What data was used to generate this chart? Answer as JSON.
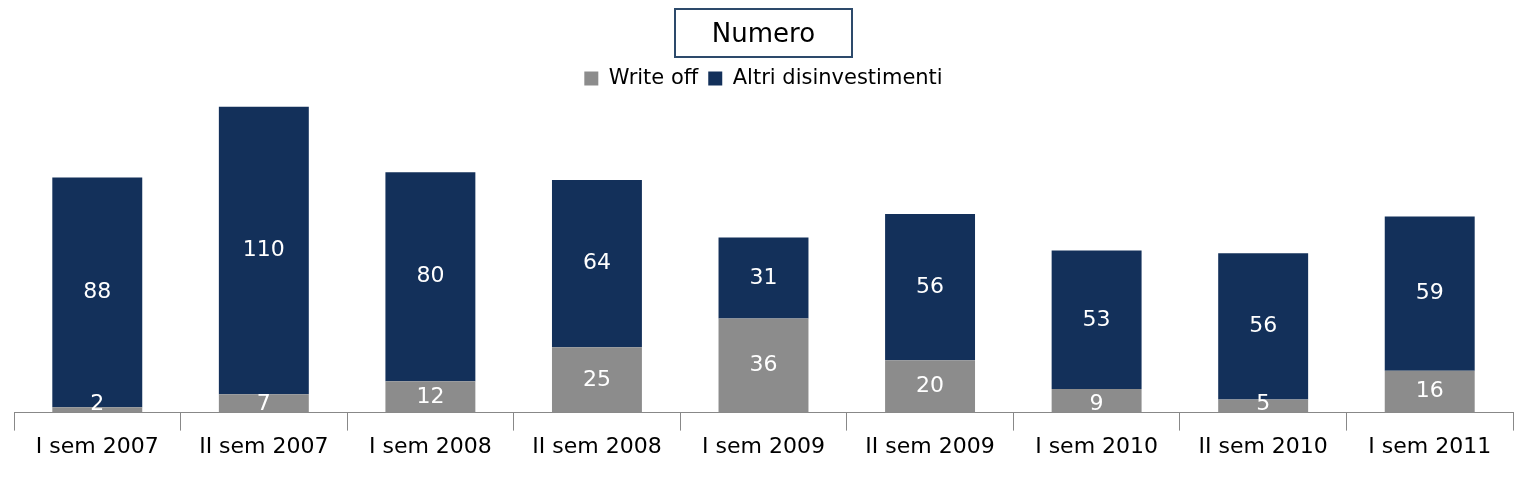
{
  "chart_data": {
    "type": "bar",
    "title": "Numero",
    "stacked": true,
    "data_labels": true,
    "legend": "top",
    "grid": false,
    "tick_labels": "x",
    "categories": [
      "I sem 2007",
      "II sem 2007",
      "I sem 2008",
      "II sem 2008",
      "I sem 2009",
      "II sem 2009",
      "I sem 2010",
      "II sem 2010",
      "I sem 2011"
    ],
    "series": [
      {
        "name": "Write off",
        "color": "#8c8c8c",
        "values": [
          2,
          7,
          12,
          25,
          36,
          20,
          9,
          5,
          16
        ]
      },
      {
        "name": "Altri disinvestimenti",
        "color": "#13305a",
        "values": [
          88,
          110,
          80,
          64,
          31,
          56,
          53,
          56,
          59
        ]
      }
    ]
  }
}
